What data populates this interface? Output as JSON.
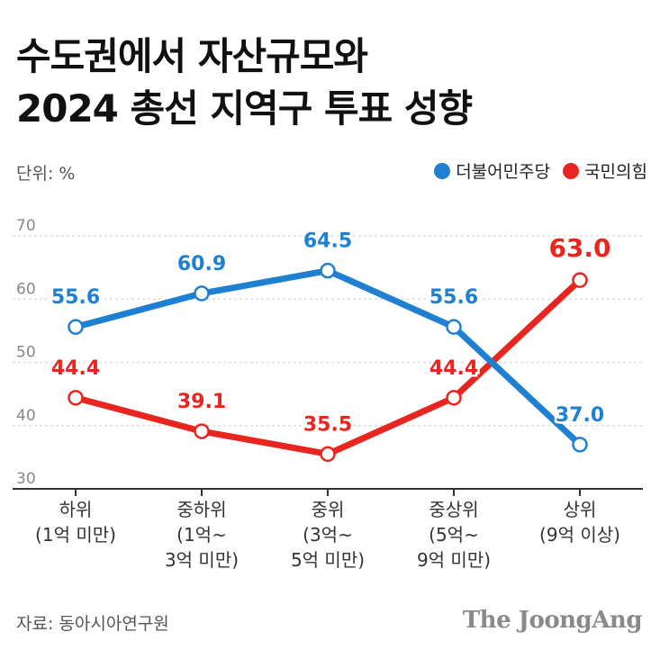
{
  "title_line1": "수도권에서 자산규모와",
  "title_line2": "2024 총선 지역구 투표 성향",
  "unit": "단위: %",
  "source": "자료: 동아시아연구원",
  "brand": "The JoongAng",
  "colors": {
    "blue": "#1f7fd1",
    "red": "#e8251e",
    "grid": "#dddddd",
    "axis": "#333333"
  },
  "chart_data": {
    "type": "line",
    "title": "수도권에서 자산규모와 2024 총선 지역구 투표 성향",
    "ylabel": "단위: %",
    "ylim": [
      30,
      70
    ],
    "yticks": [
      30,
      40,
      50,
      60,
      70
    ],
    "grid": true,
    "legend_position": "top-right",
    "categories": [
      [
        "하위",
        "(1억 미만)"
      ],
      [
        "중하위",
        "(1억~",
        "3억 미만)"
      ],
      [
        "중위",
        "(3억~",
        "5억 미만)"
      ],
      [
        "중상위",
        "(5억~",
        "9억 미만)"
      ],
      [
        "상위",
        "(9억 이상)"
      ]
    ],
    "series": [
      {
        "name": "더불어민주당",
        "color": "#1f7fd1",
        "values": [
          55.6,
          60.9,
          64.5,
          55.6,
          37.0
        ],
        "labels": [
          "55.6",
          "60.9",
          "64.5",
          "55.6",
          "37.0"
        ]
      },
      {
        "name": "국민의힘",
        "color": "#e8251e",
        "values": [
          44.4,
          39.1,
          35.5,
          44.4,
          63.0
        ],
        "labels": [
          "44.4",
          "39.1",
          "35.5",
          "44.4",
          "63.0"
        ]
      }
    ]
  }
}
